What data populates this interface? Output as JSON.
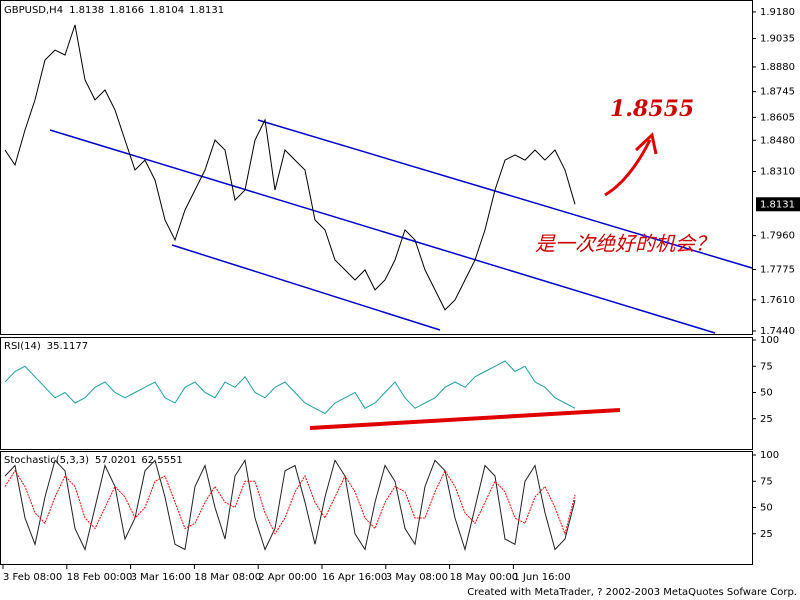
{
  "chart_data": [
    {
      "type": "line",
      "symbol": "GBPUSD,H4",
      "ohlc": [
        1.8138,
        1.8166,
        1.8104,
        1.8131
      ],
      "last_price": 1.8131,
      "color": "#000000",
      "values": [
        1.8427,
        1.8345,
        1.8536,
        1.87,
        1.8918,
        1.8972,
        1.8945,
        1.9109,
        1.8809,
        1.87,
        1.8754,
        1.8645,
        1.8481,
        1.8318,
        1.8372,
        1.8263,
        1.8045,
        1.7936,
        1.81,
        1.8209,
        1.8318,
        1.8481,
        1.8427,
        1.8154,
        1.8209,
        1.8481,
        1.8591,
        1.8209,
        1.8427,
        1.8372,
        1.8318,
        1.8045,
        1.7991,
        1.7827,
        1.7773,
        1.7718,
        1.7773,
        1.7664,
        1.7718,
        1.7827,
        1.7991,
        1.7936,
        1.7773,
        1.7664,
        1.7555,
        1.7609,
        1.7718,
        1.7827,
        1.7991,
        1.8209,
        1.8372,
        1.84,
        1.8372,
        1.8427,
        1.8372,
        1.8427,
        1.8318,
        1.8131
      ],
      "ylim": [
        1.7429,
        1.9245
      ],
      "yticks": [
        {
          "value": 1.918,
          "label": "1.9180"
        },
        1.9035,
        {
          "value": 1.888,
          "label": "1.8880"
        },
        1.8745,
        1.8605,
        {
          "value": 1.848,
          "label": "1.8480"
        },
        {
          "value": 1.831,
          "label": "1.8310"
        },
        {
          "value": 1.796,
          "label": "1.7960"
        },
        1.7775,
        {
          "value": 1.761,
          "label": "1.7610"
        },
        {
          "value": 1.744,
          "label": "1.7440"
        }
      ],
      "annotations": [
        "1.8555",
        "是一次绝好的机会？"
      ]
    },
    {
      "type": "line",
      "title": "RSI(14)",
      "last_value": 35.1177,
      "color": "#20a0a0",
      "values": [
        60,
        70,
        75,
        65,
        55,
        45,
        50,
        40,
        45,
        55,
        60,
        50,
        45,
        50,
        55,
        60,
        45,
        40,
        55,
        60,
        50,
        45,
        60,
        55,
        65,
        50,
        45,
        55,
        60,
        50,
        40,
        35,
        30,
        40,
        45,
        50,
        35,
        40,
        50,
        60,
        45,
        35,
        40,
        45,
        55,
        60,
        55,
        65,
        70,
        75,
        80,
        70,
        75,
        60,
        55,
        45,
        40,
        35
      ],
      "ylim": [
        0,
        100
      ],
      "yticks": [
        25,
        50,
        75,
        100
      ]
    },
    {
      "type": "line",
      "title": "Stochastic(5,3,3)",
      "series": [
        {
          "last": 57.0201,
          "color": "#202020",
          "values": [
            80,
            90,
            40,
            15,
            60,
            95,
            85,
            30,
            10,
            50,
            90,
            70,
            20,
            40,
            85,
            95,
            60,
            15,
            10,
            70,
            90,
            50,
            20,
            80,
            95,
            40,
            10,
            30,
            85,
            90,
            55,
            15,
            60,
            95,
            80,
            25,
            10,
            55,
            90,
            75,
            30,
            15,
            70,
            95,
            85,
            40,
            10,
            50,
            90,
            80,
            20,
            15,
            75,
            90,
            45,
            10,
            20,
            57
          ]
        },
        {
          "last": 62.5551,
          "color": "#ff0000",
          "values": [
            70,
            85,
            70,
            45,
            35,
            60,
            80,
            70,
            40,
            30,
            50,
            70,
            60,
            40,
            50,
            75,
            80,
            55,
            30,
            35,
            55,
            70,
            55,
            50,
            75,
            75,
            45,
            25,
            40,
            65,
            80,
            55,
            40,
            60,
            80,
            65,
            40,
            30,
            55,
            70,
            65,
            40,
            40,
            65,
            85,
            70,
            45,
            35,
            55,
            75,
            65,
            40,
            35,
            60,
            70,
            50,
            25,
            62
          ]
        }
      ],
      "ylim": [
        0,
        100
      ],
      "yticks": [
        25,
        50,
        75,
        100
      ],
      "x_labels": [
        "3 Feb 08:00",
        "18 Feb 00:00",
        "3 Mar 16:00",
        "18 Mar 08:00",
        "2 Apr 00:00",
        "16 Apr 16:00",
        "3 May 08:00",
        "18 May 00:00",
        "1 Jun 16:00"
      ]
    }
  ],
  "footer": "Created with MetaTrader, ? 2002-2003 MetaQuotes Sofware Corp."
}
